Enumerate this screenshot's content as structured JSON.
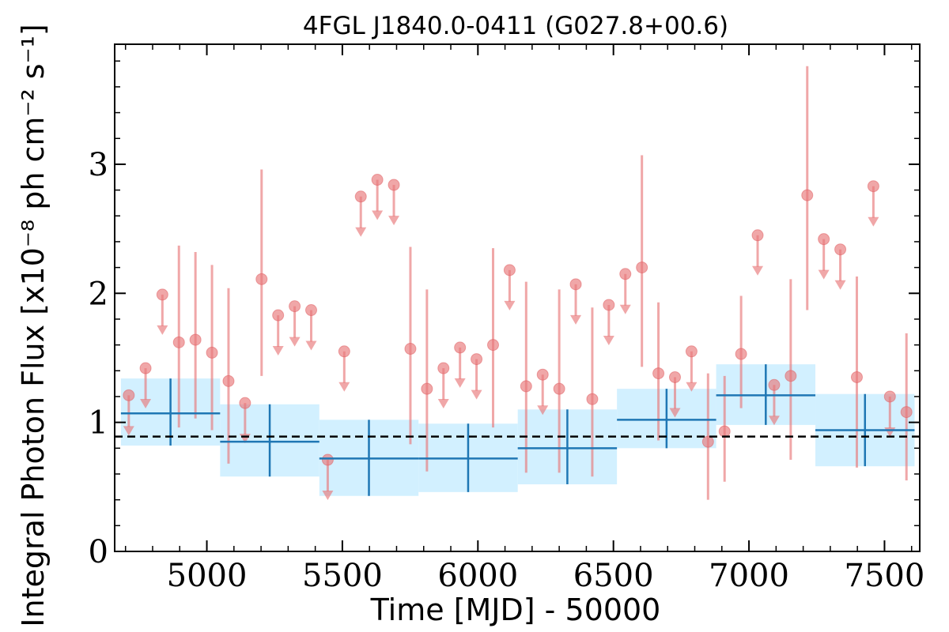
{
  "chart_data": {
    "type": "scatter",
    "title": "4FGL J1840.0-0411 (G027.8+00.6)",
    "xlabel": "Time [MJD] - 50000",
    "ylabel": "Integral Photon Flux [x10⁻⁸ ph cm⁻² s⁻¹]",
    "xlim": [
      4660,
      7630
    ],
    "ylim": [
      0,
      3.93
    ],
    "x_ticks": [
      5000,
      5500,
      6000,
      6500,
      7000,
      7500
    ],
    "y_ticks": [
      0,
      1,
      2,
      3
    ],
    "reference_line": {
      "y": 0.89,
      "style": "dashed",
      "color": "#000000"
    },
    "colors": {
      "short_bins": "#e8787a",
      "long_bins": "#1f77b4",
      "long_bins_band": "#cdeeff"
    },
    "series": [
      {
        "kind": "long_bins",
        "points": [
          {
            "x": 4866,
            "y": 1.07,
            "x0": 4683,
            "x1": 5049,
            "ylo": 0.82,
            "yhi": 1.34
          },
          {
            "x": 5232,
            "y": 0.85,
            "x0": 5049,
            "x1": 5415,
            "ylo": 0.58,
            "yhi": 1.14
          },
          {
            "x": 5598,
            "y": 0.72,
            "x0": 5415,
            "x1": 5781,
            "ylo": 0.43,
            "yhi": 1.02
          },
          {
            "x": 5964,
            "y": 0.72,
            "x0": 5781,
            "x1": 6147,
            "ylo": 0.46,
            "yhi": 0.99
          },
          {
            "x": 6330,
            "y": 0.8,
            "x0": 6147,
            "x1": 6513,
            "ylo": 0.52,
            "yhi": 1.1
          },
          {
            "x": 6696,
            "y": 1.02,
            "x0": 6513,
            "x1": 6879,
            "ylo": 0.8,
            "yhi": 1.26
          },
          {
            "x": 7062,
            "y": 1.21,
            "x0": 6879,
            "x1": 7245,
            "ylo": 0.98,
            "yhi": 1.45
          },
          {
            "x": 7428,
            "y": 0.94,
            "x0": 7245,
            "x1": 7611,
            "ylo": 0.66,
            "yhi": 1.22
          }
        ]
      },
      {
        "kind": "short_bins",
        "points": [
          {
            "x": 4712,
            "y": 1.21,
            "ul": true
          },
          {
            "x": 4774,
            "y": 1.42,
            "ul": true
          },
          {
            "x": 4836,
            "y": 1.99,
            "ul": true
          },
          {
            "x": 4897,
            "y": 1.62,
            "ylo": 0.96,
            "yhi": 2.37
          },
          {
            "x": 4958,
            "y": 1.64,
            "ylo": 1.03,
            "yhi": 2.32
          },
          {
            "x": 5019,
            "y": 1.54,
            "ylo": 0.94,
            "yhi": 2.22
          },
          {
            "x": 5080,
            "y": 1.32,
            "ylo": 0.68,
            "yhi": 2.04
          },
          {
            "x": 5141,
            "y": 1.15,
            "ul": true
          },
          {
            "x": 5202,
            "y": 2.11,
            "ylo": 1.36,
            "yhi": 2.96
          },
          {
            "x": 5263,
            "y": 1.83,
            "ul": true
          },
          {
            "x": 5324,
            "y": 1.9,
            "ul": true
          },
          {
            "x": 5385,
            "y": 1.87,
            "ul": true
          },
          {
            "x": 5446,
            "y": 0.71,
            "ul": true
          },
          {
            "x": 5507,
            "y": 1.55,
            "ul": true
          },
          {
            "x": 5568,
            "y": 2.75,
            "ul": true
          },
          {
            "x": 5629,
            "y": 2.88,
            "ul": true
          },
          {
            "x": 5690,
            "y": 2.84,
            "ul": true
          },
          {
            "x": 5751,
            "y": 1.57,
            "ylo": 0.83,
            "yhi": 2.36
          },
          {
            "x": 5812,
            "y": 1.26,
            "ylo": 0.62,
            "yhi": 2.03
          },
          {
            "x": 5873,
            "y": 1.42,
            "ul": true
          },
          {
            "x": 5934,
            "y": 1.58,
            "ul": true
          },
          {
            "x": 5995,
            "y": 1.49,
            "ul": true
          },
          {
            "x": 6056,
            "y": 1.6,
            "ylo": 0.96,
            "yhi": 2.35
          },
          {
            "x": 6117,
            "y": 2.18,
            "ul": true
          },
          {
            "x": 6178,
            "y": 1.28,
            "ylo": 0.61,
            "yhi": 2.09
          },
          {
            "x": 6239,
            "y": 1.37,
            "ul": true
          },
          {
            "x": 6300,
            "y": 1.26,
            "ylo": 0.61,
            "yhi": 2.03
          },
          {
            "x": 6361,
            "y": 2.07,
            "ul": true
          },
          {
            "x": 6422,
            "y": 1.18,
            "ylo": 0.58,
            "yhi": 1.89
          },
          {
            "x": 6483,
            "y": 1.91,
            "ul": true
          },
          {
            "x": 6544,
            "y": 2.15,
            "ul": true
          },
          {
            "x": 6605,
            "y": 2.2,
            "ylo": 1.43,
            "yhi": 3.07
          },
          {
            "x": 6666,
            "y": 1.38,
            "ylo": 0.86,
            "yhi": 1.93
          },
          {
            "x": 6727,
            "y": 1.35,
            "ul": true
          },
          {
            "x": 6788,
            "y": 1.55,
            "ul": true
          },
          {
            "x": 6849,
            "y": 0.85,
            "ylo": 0.4,
            "yhi": 1.38
          },
          {
            "x": 6910,
            "y": 0.93,
            "ylo": 0.54,
            "yhi": 1.36
          },
          {
            "x": 6971,
            "y": 1.53,
            "ylo": 1.11,
            "yhi": 1.98
          },
          {
            "x": 7032,
            "y": 2.45,
            "ul": true
          },
          {
            "x": 7093,
            "y": 1.29,
            "ul": true
          },
          {
            "x": 7154,
            "y": 1.36,
            "ylo": 0.71,
            "yhi": 2.11
          },
          {
            "x": 7215,
            "y": 2.76,
            "ylo": 1.87,
            "yhi": 3.76
          },
          {
            "x": 7276,
            "y": 2.42,
            "ul": true
          },
          {
            "x": 7337,
            "y": 2.34,
            "ul": true
          },
          {
            "x": 7398,
            "y": 1.35,
            "ylo": 0.65,
            "yhi": 2.13
          },
          {
            "x": 7459,
            "y": 2.83,
            "ul": true
          },
          {
            "x": 7520,
            "y": 1.2,
            "ul": true
          },
          {
            "x": 7581,
            "y": 1.08,
            "ylo": 0.55,
            "yhi": 1.69
          }
        ]
      }
    ]
  }
}
